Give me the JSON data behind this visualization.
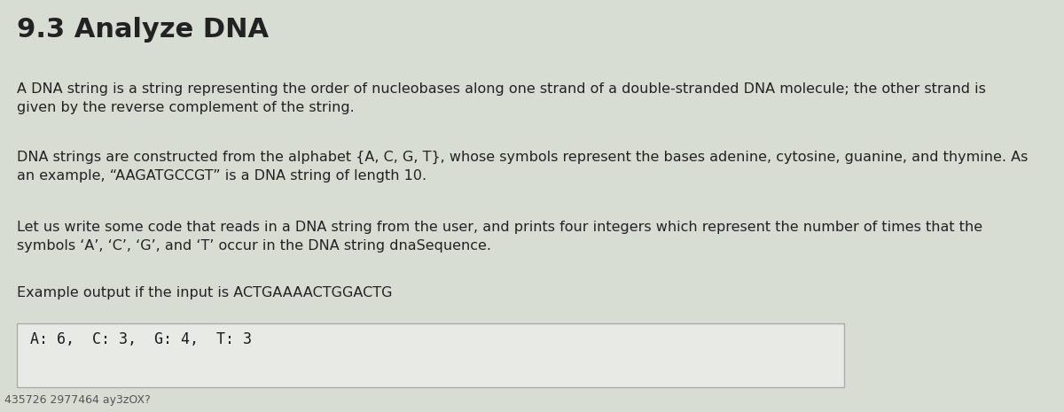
{
  "title": "9.3 Analyze DNA",
  "title_fontsize": 22,
  "title_fontstyle": "normal",
  "title_fontweight": "bold",
  "bg_color": "#d8ddd4",
  "bg_color2": "#c8cfc4",
  "text_color": "#222222",
  "code_color": "#1a1a1a",
  "para1": "A DNA string is a string representing the order of nucleobases along one strand of a double-stranded DNA molecule; the other strand is\ngiven by the reverse complement of the string.",
  "para2": "DNA strings are constructed from the alphabet {A, C, G, T}, whose symbols represent the bases adenine, cytosine, guanine, and thymine. As\nan example, “AAGATGCCGT” is a DNA string of length 10.",
  "para3": "Let us write some code that reads in a DNA string from the user, and prints four integers which represent the number of times that the\nsymbols ‘A’, ‘C’, ‘G’, and ‘T’ occur in the DNA string dnaSequence.",
  "para4": "Example output if the input is ACTGAAAACTGGACTG",
  "code_line": "A: 6,  C: 3,  G: 4,  T: 3",
  "footer": "435726 2977464 ay3zOX?",
  "para_fontsize": 11.5,
  "code_fontsize": 12,
  "footer_fontsize": 9,
  "box_bg": "#e8ebe5",
  "box_border": "#aaaaaa"
}
